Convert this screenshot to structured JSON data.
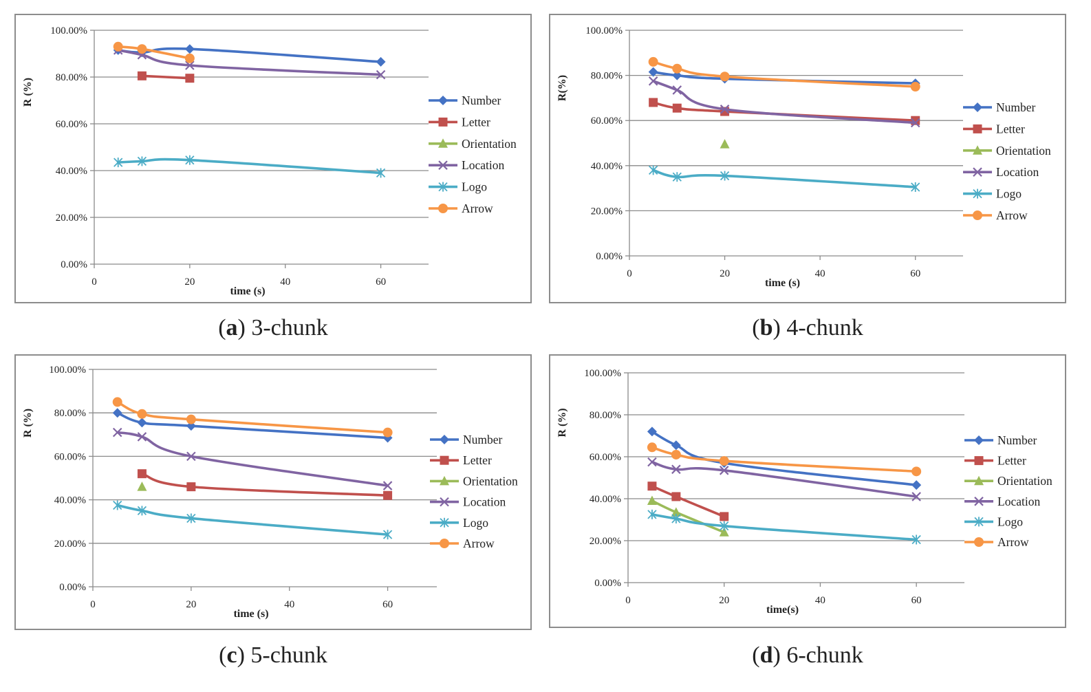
{
  "chart_data": [
    {
      "type": "line",
      "panel_label": "a",
      "caption": "3-chunk",
      "ylabel": "R (%)",
      "xlabel": "time (s)",
      "xlim": [
        0,
        70
      ],
      "ylim": [
        0,
        100
      ],
      "x_ticks": [
        0,
        20,
        40,
        60
      ],
      "y_ticks": [
        "0.00%",
        "20.00%",
        "40.00%",
        "60.00%",
        "80.00%",
        "100.00%"
      ],
      "grid": "horizontal",
      "legend": "right",
      "series": [
        {
          "name": "Number",
          "color": "#4472C4",
          "marker": "diamond",
          "x": [
            5,
            10,
            20,
            60
          ],
          "y": [
            91.5,
            90.5,
            92.0,
            86.5
          ]
        },
        {
          "name": "Letter",
          "color": "#C0504D",
          "marker": "square",
          "x": [
            10,
            20
          ],
          "y": [
            80.5,
            79.5
          ]
        },
        {
          "name": "Orientation",
          "color": "#9BBB59",
          "marker": "triangle",
          "x": [],
          "y": []
        },
        {
          "name": "Location",
          "color": "#8064A2",
          "marker": "x",
          "x": [
            5,
            10,
            20,
            60
          ],
          "y": [
            91.5,
            89.5,
            85.0,
            81.0
          ]
        },
        {
          "name": "Logo",
          "color": "#4BACC6",
          "marker": "star",
          "x": [
            5,
            10,
            20,
            60
          ],
          "y": [
            43.5,
            44.0,
            44.5,
            39.0
          ]
        },
        {
          "name": "Arrow",
          "color": "#F79646",
          "marker": "circle",
          "x": [
            5,
            10,
            20
          ],
          "y": [
            93.0,
            92.0,
            88.0
          ]
        }
      ]
    },
    {
      "type": "line",
      "panel_label": "b",
      "caption": "4-chunk",
      "ylabel": "R(%)",
      "xlabel": "time (s)",
      "xlim": [
        0,
        70
      ],
      "ylim": [
        0,
        100
      ],
      "x_ticks": [
        0,
        20,
        40,
        60
      ],
      "y_ticks": [
        "0.00%",
        "20.00%",
        "40.00%",
        "60.00%",
        "80.00%",
        "100.00%"
      ],
      "grid": "horizontal",
      "legend": "right",
      "series": [
        {
          "name": "Number",
          "color": "#4472C4",
          "marker": "diamond",
          "x": [
            5,
            10,
            20,
            60
          ],
          "y": [
            81.5,
            80.0,
            78.5,
            76.5
          ]
        },
        {
          "name": "Letter",
          "color": "#C0504D",
          "marker": "square",
          "x": [
            5,
            10,
            20,
            60
          ],
          "y": [
            68.0,
            65.5,
            64.0,
            60.0
          ]
        },
        {
          "name": "Orientation",
          "color": "#9BBB59",
          "marker": "triangle",
          "x": [
            20
          ],
          "y": [
            49.5
          ]
        },
        {
          "name": "Location",
          "color": "#8064A2",
          "marker": "x",
          "x": [
            5,
            10,
            20,
            60
          ],
          "y": [
            77.5,
            73.5,
            65.0,
            59.0
          ]
        },
        {
          "name": "Logo",
          "color": "#4BACC6",
          "marker": "star",
          "x": [
            5,
            10,
            20,
            60
          ],
          "y": [
            38.0,
            35.0,
            35.5,
            30.5
          ]
        },
        {
          "name": "Arrow",
          "color": "#F79646",
          "marker": "circle",
          "x": [
            5,
            10,
            20,
            60
          ],
          "y": [
            86.0,
            83.0,
            79.5,
            75.0
          ]
        }
      ]
    },
    {
      "type": "line",
      "panel_label": "c",
      "caption": "5-chunk",
      "ylabel": "R (%)",
      "xlabel": "time (s)",
      "xlim": [
        0,
        70
      ],
      "ylim": [
        0,
        100
      ],
      "x_ticks": [
        0,
        20,
        40,
        60
      ],
      "y_ticks": [
        "0.00%",
        "20.00%",
        "40.00%",
        "60.00%",
        "80.00%",
        "100.00%"
      ],
      "grid": "horizontal",
      "legend": "right",
      "series": [
        {
          "name": "Number",
          "color": "#4472C4",
          "marker": "diamond",
          "x": [
            5,
            10,
            20,
            60
          ],
          "y": [
            80.0,
            75.5,
            74.0,
            68.5
          ]
        },
        {
          "name": "Letter",
          "color": "#C0504D",
          "marker": "square",
          "x": [
            10,
            20,
            60
          ],
          "y": [
            52.0,
            46.0,
            42.0
          ]
        },
        {
          "name": "Orientation",
          "color": "#9BBB59",
          "marker": "triangle",
          "x": [
            10
          ],
          "y": [
            46.0
          ]
        },
        {
          "name": "Location",
          "color": "#8064A2",
          "marker": "x",
          "x": [
            5,
            10,
            20,
            60
          ],
          "y": [
            71.0,
            69.0,
            60.0,
            46.5
          ]
        },
        {
          "name": "Logo",
          "color": "#4BACC6",
          "marker": "star",
          "x": [
            5,
            10,
            20,
            60
          ],
          "y": [
            37.5,
            35.0,
            31.5,
            24.0
          ]
        },
        {
          "name": "Arrow",
          "color": "#F79646",
          "marker": "circle",
          "x": [
            5,
            10,
            20,
            60
          ],
          "y": [
            85.0,
            79.5,
            77.0,
            71.0
          ]
        }
      ]
    },
    {
      "type": "line",
      "panel_label": "d",
      "caption": "6-chunk",
      "ylabel": "R (%)",
      "xlabel": "time(s)",
      "xlim": [
        0,
        70
      ],
      "ylim": [
        0,
        100
      ],
      "x_ticks": [
        0,
        20,
        40,
        60
      ],
      "y_ticks": [
        "0.00%",
        "20.00%",
        "40.00%",
        "60.00%",
        "80.00%",
        "100.00%"
      ],
      "grid": "horizontal",
      "legend": "right",
      "series": [
        {
          "name": "Number",
          "color": "#4472C4",
          "marker": "diamond",
          "x": [
            5,
            10,
            20,
            60
          ],
          "y": [
            72.0,
            65.5,
            57.0,
            46.5
          ]
        },
        {
          "name": "Letter",
          "color": "#C0504D",
          "marker": "square",
          "x": [
            5,
            10,
            20
          ],
          "y": [
            46.0,
            41.0,
            31.5
          ]
        },
        {
          "name": "Orientation",
          "color": "#9BBB59",
          "marker": "triangle",
          "x": [
            5,
            10,
            20
          ],
          "y": [
            39.0,
            33.5,
            24.0
          ]
        },
        {
          "name": "Location",
          "color": "#8064A2",
          "marker": "x",
          "x": [
            5,
            10,
            20,
            60
          ],
          "y": [
            57.5,
            54.0,
            53.5,
            41.0
          ]
        },
        {
          "name": "Logo",
          "color": "#4BACC6",
          "marker": "star",
          "x": [
            5,
            10,
            20,
            60
          ],
          "y": [
            32.5,
            30.5,
            27.0,
            20.5
          ]
        },
        {
          "name": "Arrow",
          "color": "#F79646",
          "marker": "circle",
          "x": [
            5,
            10,
            20,
            60
          ],
          "y": [
            64.5,
            61.0,
            58.0,
            53.0
          ]
        }
      ]
    }
  ]
}
